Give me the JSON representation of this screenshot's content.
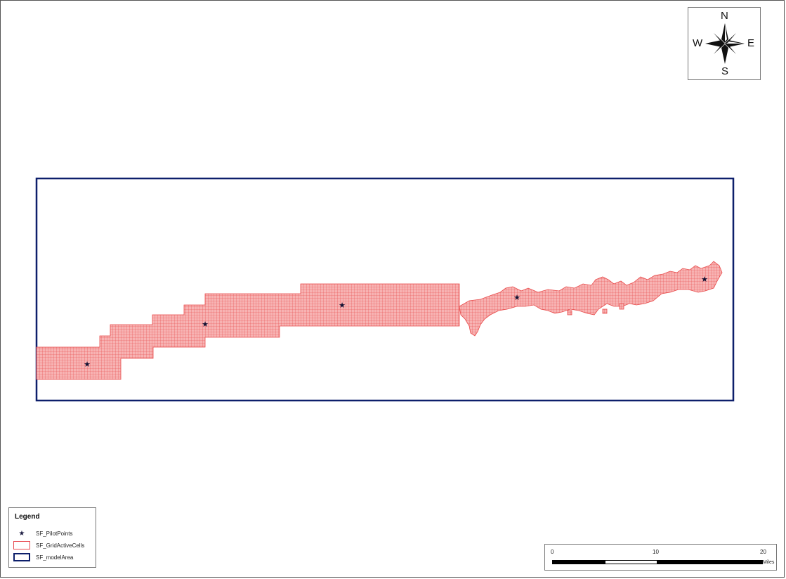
{
  "compass": {
    "n": "N",
    "s": "S",
    "e": "E",
    "w": "W"
  },
  "legend": {
    "title": "Legend",
    "items": [
      {
        "label": "SF_PilotPoints",
        "symbol": "star-icon",
        "color": "#1a1a40"
      },
      {
        "label": "SF_GridActiveCells",
        "symbol": "grid-cell-icon",
        "color": "#e8484f"
      },
      {
        "label": "SF_modelArea",
        "symbol": "model-area-icon",
        "color": "#0d1f6b"
      }
    ]
  },
  "scale": {
    "labels": [
      "0",
      "10",
      "20"
    ],
    "units": "Miles"
  },
  "colors": {
    "grid_fill": "#f59a9a",
    "grid_line": "#e84a4a",
    "model_area": "#0d1f6b",
    "star": "#111133"
  }
}
